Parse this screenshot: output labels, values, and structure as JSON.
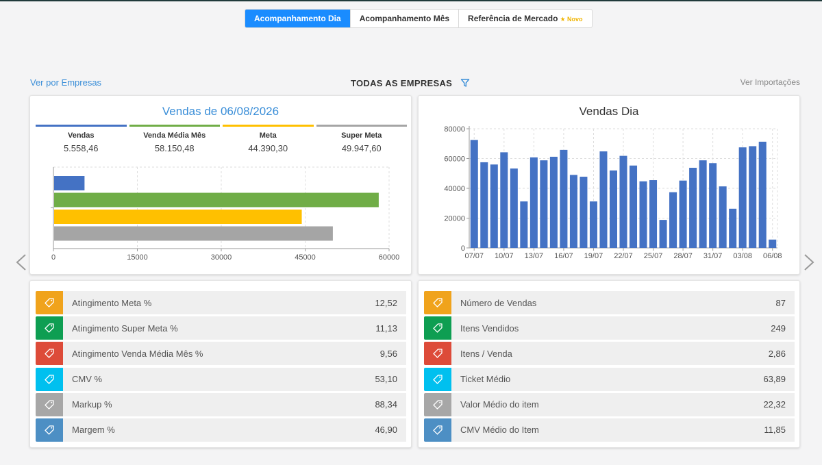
{
  "tabs": [
    {
      "label": "Acompanhamento Dia",
      "active": true
    },
    {
      "label": "Acompanhamento Mês",
      "active": false
    },
    {
      "label": "Referência de Mercado",
      "badge": "★ Novo",
      "active": false
    }
  ],
  "header": {
    "ver_empresas": "Ver por Empresas",
    "titulo": "TODAS AS EMPRESAS",
    "ver_importacoes": "Ver Importações"
  },
  "vendas_panel": {
    "title": "Vendas de 06/08/2026",
    "stats": [
      {
        "label": "Vendas",
        "value": "5.558,46",
        "color": "#4472c4"
      },
      {
        "label": "Venda Média Mês",
        "value": "58.150,48",
        "color": "#70ad47"
      },
      {
        "label": "Meta",
        "value": "44.390,30",
        "color": "#ffc000"
      },
      {
        "label": "Super Meta",
        "value": "49.947,60",
        "color": "#a5a5a5"
      }
    ]
  },
  "chart_data": [
    {
      "type": "bar",
      "orientation": "horizontal",
      "categories": [
        "Vendas",
        "Venda Média Mês",
        "Meta",
        "Super Meta"
      ],
      "values": [
        5558.46,
        58150.48,
        44390.3,
        49947.6
      ],
      "colors": [
        "#4472c4",
        "#70ad47",
        "#ffc000",
        "#a5a5a5"
      ],
      "xlim": [
        0,
        60000
      ],
      "x_ticks": [
        "0",
        "15000",
        "30000",
        "45000",
        "60000"
      ],
      "grid": true
    },
    {
      "type": "bar",
      "title": "Vendas Dia",
      "color": "#4472c4",
      "x": [
        "07/07",
        "08/07",
        "09/07",
        "10/07",
        "11/07",
        "12/07",
        "13/07",
        "14/07",
        "15/07",
        "16/07",
        "17/07",
        "18/07",
        "19/07",
        "20/07",
        "21/07",
        "22/07",
        "23/07",
        "24/07",
        "25/07",
        "26/07",
        "27/07",
        "28/07",
        "29/07",
        "30/07",
        "31/07",
        "01/08",
        "02/08",
        "03/08",
        "04/08",
        "05/08",
        "06/08"
      ],
      "values": [
        72500,
        57500,
        56000,
        64200,
        53300,
        31200,
        60800,
        58800,
        61200,
        65800,
        49000,
        47800,
        31200,
        64800,
        52000,
        61800,
        55300,
        44700,
        45500,
        18800,
        37400,
        45200,
        53800,
        58800,
        56900,
        41300,
        26300,
        67500,
        68300,
        71300,
        5600
      ],
      "x_ticks": [
        "07/07",
        "10/07",
        "13/07",
        "16/07",
        "19/07",
        "22/07",
        "25/07",
        "28/07",
        "31/07",
        "03/08",
        "06/08"
      ],
      "y_ticks": [
        "0",
        "20000",
        "40000",
        "60000",
        "80000"
      ],
      "ylim": [
        0,
        80000
      ],
      "grid": true
    }
  ],
  "indicadores_esq": [
    {
      "label": "Atingimento Meta %",
      "value": "12,52",
      "color": "#f0a31c",
      "icon": "tag-icon"
    },
    {
      "label": "Atingimento Super Meta %",
      "value": "11,13",
      "color": "#0e9e52",
      "icon": "tag-icon"
    },
    {
      "label": "Atingimento Venda Média Mês %",
      "value": "9,56",
      "color": "#dd4b39",
      "icon": "tag-icon"
    },
    {
      "label": "CMV %",
      "value": "53,10",
      "color": "#00c0ef",
      "icon": "tag-icon"
    },
    {
      "label": "Markup %",
      "value": "88,34",
      "color": "#a7a7a7",
      "icon": "tag-icon"
    },
    {
      "label": "Margem %",
      "value": "46,90",
      "color": "#4d8fc4",
      "icon": "tag-icon"
    }
  ],
  "indicadores_dir": [
    {
      "label": "Número de Vendas",
      "value": "87",
      "color": "#f0a31c",
      "icon": "tag-icon"
    },
    {
      "label": "Itens Vendidos",
      "value": "249",
      "color": "#0e9e52",
      "icon": "tag-icon"
    },
    {
      "label": "Itens / Venda",
      "value": "2,86",
      "color": "#dd4b39",
      "icon": "tag-icon"
    },
    {
      "label": "Ticket Médio",
      "value": "63,89",
      "color": "#00c0ef",
      "icon": "tag-icon"
    },
    {
      "label": "Valor Médio do item",
      "value": "22,32",
      "color": "#a7a7a7",
      "icon": "tag-icon"
    },
    {
      "label": "CMV Médio do Item",
      "value": "11,85",
      "color": "#4d8fc4",
      "icon": "tag-icon"
    }
  ],
  "icons": {
    "filter": "filter-icon",
    "prev": "chevron-left-icon",
    "next": "chevron-right-icon"
  }
}
